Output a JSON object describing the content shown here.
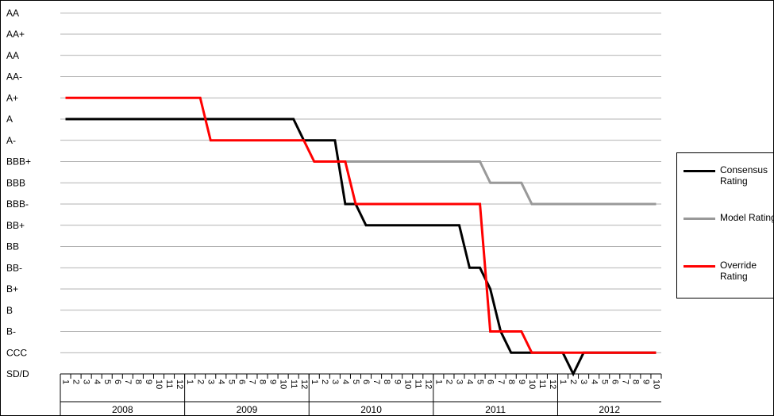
{
  "chart_data": {
    "type": "line",
    "y_categories": [
      "SD/D",
      "CCC",
      "B-",
      "B",
      "B+",
      "BB-",
      "BB",
      "BB+",
      "BBB-",
      "BBB",
      "BBB+",
      "A-",
      "A",
      "A+",
      "AA-",
      "AA",
      "AA+",
      "AA"
    ],
    "x_month_labels": [
      "1",
      "2",
      "3",
      "4",
      "5",
      "6",
      "7",
      "8",
      "9",
      "10",
      "11",
      "12",
      "1",
      "2",
      "3",
      "4",
      "5",
      "6",
      "7",
      "8",
      "9",
      "10",
      "11",
      "12",
      "1",
      "2",
      "3",
      "4",
      "5",
      "6",
      "7",
      "8",
      "9",
      "10",
      "11",
      "12",
      "1",
      "2",
      "3",
      "4",
      "5",
      "6",
      "7",
      "8",
      "9",
      "10",
      "11",
      "12",
      "1",
      "2",
      "3",
      "4",
      "5",
      "6",
      "7",
      "8",
      "9",
      "10"
    ],
    "years": [
      {
        "label": "2008",
        "months": 12
      },
      {
        "label": "2009",
        "months": 12
      },
      {
        "label": "2010",
        "months": 12
      },
      {
        "label": "2011",
        "months": 12
      },
      {
        "label": "2012",
        "months": 10
      }
    ],
    "grid": true,
    "legend_position": "right",
    "series": [
      {
        "name": "Consensus Rating",
        "color": "#000000",
        "points": [
          [
            "2008-01",
            "A"
          ],
          [
            "2009-11",
            "A"
          ],
          [
            "2009-12",
            "A-"
          ],
          [
            "2010-03",
            "A-"
          ],
          [
            "2010-04",
            "BBB-"
          ],
          [
            "2010-05",
            "BBB-"
          ],
          [
            "2010-06",
            "BB+"
          ],
          [
            "2011-03",
            "BB+"
          ],
          [
            "2011-04",
            "BB-"
          ],
          [
            "2011-05",
            "BB-"
          ],
          [
            "2011-06",
            "B+"
          ],
          [
            "2011-07",
            "B-"
          ],
          [
            "2011-08",
            "CCC"
          ],
          [
            "2012-01",
            "CCC"
          ],
          [
            "2012-02",
            "SD/D"
          ],
          [
            "2012-03",
            "CCC"
          ],
          [
            "2012-10",
            "CCC"
          ]
        ]
      },
      {
        "name": "Model Rating",
        "color": "#999999",
        "points": [
          [
            "2010-03",
            "BBB+"
          ],
          [
            "2011-05",
            "BBB+"
          ],
          [
            "2011-06",
            "BBB"
          ],
          [
            "2011-09",
            "BBB"
          ],
          [
            "2011-10",
            "BBB-"
          ],
          [
            "2012-10",
            "BBB-"
          ]
        ]
      },
      {
        "name": "Override Rating",
        "color": "#ff0000",
        "points": [
          [
            "2008-01",
            "A+"
          ],
          [
            "2009-02",
            "A+"
          ],
          [
            "2009-03",
            "A-"
          ],
          [
            "2009-12",
            "A-"
          ],
          [
            "2010-01",
            "BBB+"
          ],
          [
            "2010-04",
            "BBB+"
          ],
          [
            "2010-05",
            "BBB-"
          ],
          [
            "2011-05",
            "BBB-"
          ],
          [
            "2011-06",
            "B-"
          ],
          [
            "2011-09",
            "B-"
          ],
          [
            "2011-10",
            "CCC"
          ],
          [
            "2012-10",
            "CCC"
          ]
        ]
      }
    ]
  },
  "legend": {
    "items": [
      {
        "label": "Consensus Rating",
        "color": "#000000"
      },
      {
        "label": "Model Rating",
        "color": "#999999"
      },
      {
        "label": "Override Rating",
        "color": "#ff0000"
      }
    ]
  }
}
